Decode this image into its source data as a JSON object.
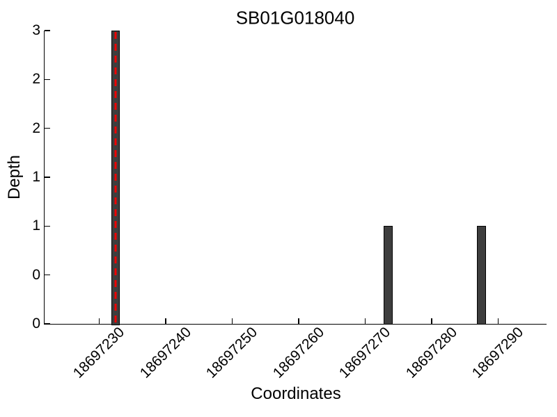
{
  "figure": {
    "background": "#ffffff"
  },
  "chart_data": {
    "type": "bar",
    "title": "SB01G018040",
    "xlabel": "Coordinates",
    "ylabel": "Depth",
    "grid": false,
    "legend": null,
    "xlim": [
      18697221.8,
      18697297.3
    ],
    "ylim": [
      0,
      3
    ],
    "x_tick_values": [
      18697230,
      18697240,
      18697250,
      18697260,
      18697270,
      18697280,
      18697290
    ],
    "x_tick_labels": [
      "18697230",
      "18697240",
      "18697250",
      "18697260",
      "18697270",
      "18697280",
      "18697290"
    ],
    "x_tick_label_rotation_deg": 45,
    "y_tick_values": [
      0,
      0.5,
      1,
      1.5,
      2,
      2.5,
      3
    ],
    "y_tick_labels": [
      "0",
      "0",
      "1",
      "1",
      "2",
      "2",
      "3"
    ],
    "bars": [
      {
        "x_start": 18697232,
        "x_end": 18697233,
        "depth": 3
      },
      {
        "x_start": 18697273,
        "x_end": 18697274,
        "depth": 1
      },
      {
        "x_start": 18697287,
        "x_end": 18697288,
        "depth": 1
      }
    ],
    "bar_width_units": 1,
    "marker_line": {
      "x": 18697232.5,
      "style": "dashed",
      "orientation": "vertical"
    },
    "colors": {
      "bar_fill": "#3e3e3e",
      "bar_edge": "#000000",
      "marker_line": "#ee0000",
      "axis": "#000000",
      "text": "#000000",
      "background": "#ffffff"
    }
  }
}
